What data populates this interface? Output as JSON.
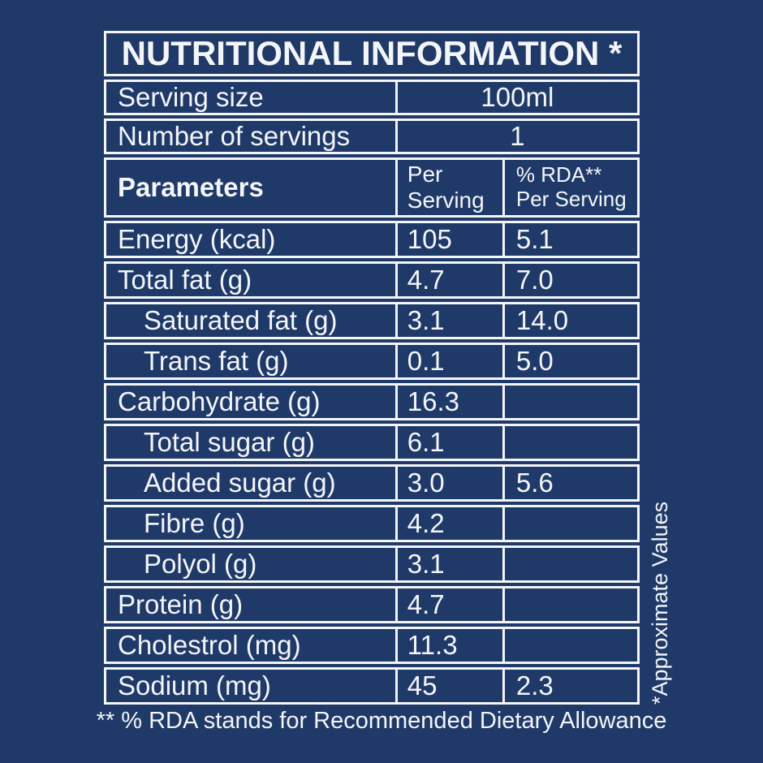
{
  "colors": {
    "background": "#1f3a69",
    "foreground": "#f4f5f8"
  },
  "table": {
    "title": "NUTRITIONAL INFORMATION *",
    "info_rows": [
      {
        "label": "Serving size",
        "value": "100ml"
      },
      {
        "label": "Number of servings",
        "value": "1"
      }
    ],
    "header": {
      "parameters": "Parameters",
      "per_serving": "Per\nServing",
      "rda": "% RDA**\nPer Serving"
    },
    "rows": [
      {
        "label": "Energy (kcal)",
        "indent": false,
        "per_serving": "105",
        "rda": "5.1"
      },
      {
        "label": "Total fat (g)",
        "indent": false,
        "per_serving": "4.7",
        "rda": "7.0"
      },
      {
        "label": "Saturated fat (g)",
        "indent": true,
        "per_serving": "3.1",
        "rda": "14.0"
      },
      {
        "label": "Trans fat (g)",
        "indent": true,
        "per_serving": "0.1",
        "rda": "5.0"
      },
      {
        "label": "Carbohydrate (g)",
        "indent": false,
        "per_serving": "16.3",
        "rda": ""
      },
      {
        "label": "Total sugar (g)",
        "indent": true,
        "per_serving": "6.1",
        "rda": ""
      },
      {
        "label": "Added sugar (g)",
        "indent": true,
        "per_serving": "3.0",
        "rda": "5.6"
      },
      {
        "label": "Fibre (g)",
        "indent": true,
        "per_serving": "4.2",
        "rda": ""
      },
      {
        "label": "Polyol (g)",
        "indent": true,
        "per_serving": "3.1",
        "rda": ""
      },
      {
        "label": "Protein (g)",
        "indent": false,
        "per_serving": "4.7",
        "rda": ""
      },
      {
        "label": "Cholestrol (mg)",
        "indent": false,
        "per_serving": "11.3",
        "rda": ""
      },
      {
        "label": "Sodium (mg)",
        "indent": false,
        "per_serving": "45",
        "rda": "2.3"
      }
    ]
  },
  "annotations": {
    "approximate_values": "*Approximate Values",
    "rda_footnote": "** % RDA stands for Recommended Dietary Allowance"
  }
}
